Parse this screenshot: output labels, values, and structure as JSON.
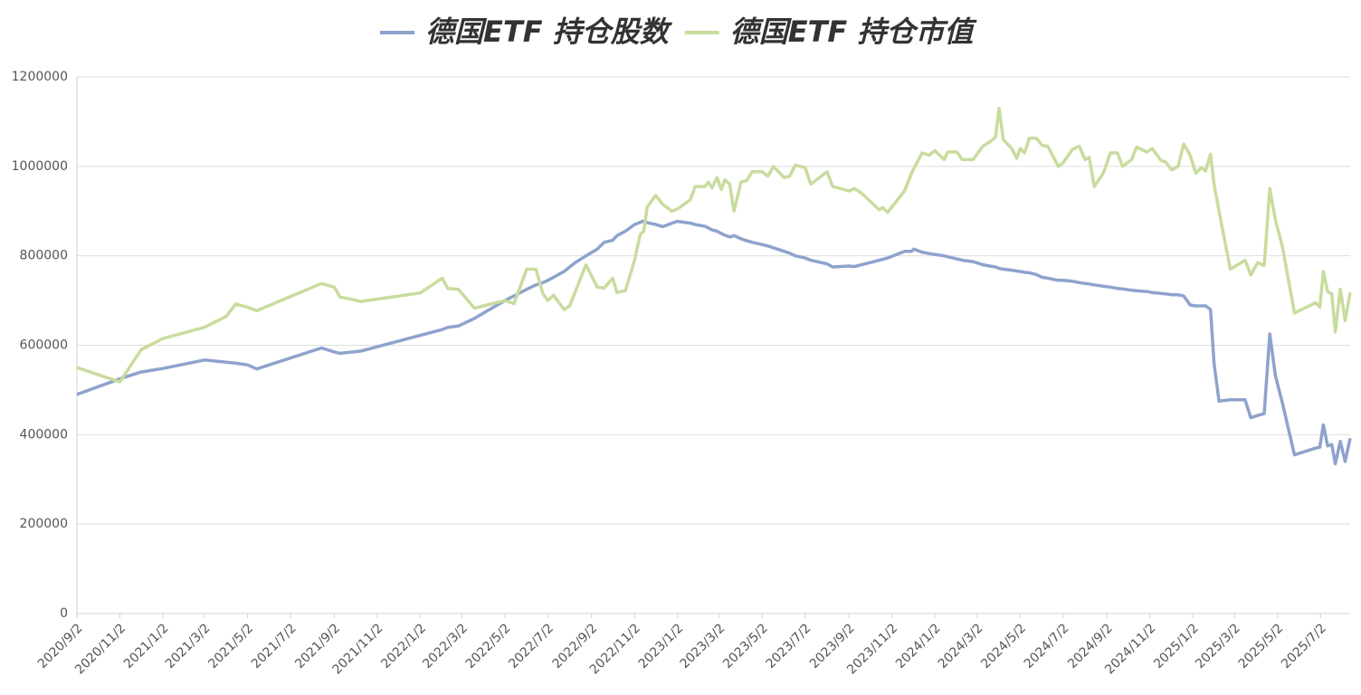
{
  "chart_data": {
    "type": "line",
    "x": [
      "2020/9/2",
      "2020/11/2",
      "2020/12/2",
      "2021/1/2",
      "2021/3/2",
      "2021/4/2",
      "2021/4/15",
      "2021/5/2",
      "2021/5/15",
      "2021/8/15",
      "2021/9/2",
      "2021/9/10",
      "2021/10/10",
      "2022/1/2",
      "2022/2/2",
      "2022/2/10",
      "2022/2/25",
      "2022/3/20",
      "2022/5/2",
      "2022/5/15",
      "2022/6/2",
      "2022/6/15",
      "2022/6/25",
      "2022/7/2",
      "2022/7/10",
      "2022/7/25",
      "2022/8/2",
      "2022/8/10",
      "2022/8/25",
      "2022/9/10",
      "2022/9/20",
      "2022/10/2",
      "2022/10/8",
      "2022/10/20",
      "2022/11/2",
      "2022/11/10",
      "2022/11/15",
      "2022/11/20",
      "2022/12/2",
      "2022/12/12",
      "2022/12/25",
      "2023/1/2",
      "2023/1/20",
      "2023/1/27",
      "2023/2/10",
      "2023/2/15",
      "2023/2/20",
      "2023/2/27",
      "2023/3/5",
      "2023/3/10",
      "2023/3/17",
      "2023/3/23",
      "2023/4/2",
      "2023/4/10",
      "2023/4/18",
      "2023/5/2",
      "2023/5/10",
      "2023/5/18",
      "2023/6/2",
      "2023/6/10",
      "2023/6/18",
      "2023/7/2",
      "2023/7/10",
      "2023/8/2",
      "2023/8/10",
      "2023/9/2",
      "2023/9/10",
      "2023/9/20",
      "2023/10/15",
      "2023/10/20",
      "2023/10/27",
      "2023/11/20",
      "2023/11/30",
      "2023/12/3",
      "2023/12/15",
      "2023/12/25",
      "2024/1/2",
      "2024/1/15",
      "2024/1/20",
      "2024/2/2",
      "2024/2/10",
      "2024/2/25",
      "2024/3/10",
      "2024/3/20",
      "2024/3/28",
      "2024/4/2",
      "2024/4/8",
      "2024/4/20",
      "2024/4/27",
      "2024/5/2",
      "2024/5/8",
      "2024/5/15",
      "2024/5/25",
      "2024/6/2",
      "2024/6/10",
      "2024/6/25",
      "2024/7/2",
      "2024/7/15",
      "2024/7/25",
      "2024/8/2",
      "2024/8/8",
      "2024/8/15",
      "2024/8/28",
      "2024/9/7",
      "2024/9/17",
      "2024/9/24",
      "2024/10/7",
      "2024/10/14",
      "2024/10/29",
      "2024/11/5",
      "2024/11/18",
      "2024/11/24",
      "2024/12/3",
      "2024/12/12",
      "2024/12/20",
      "2024/12/29",
      "2025/1/6",
      "2025/1/14",
      "2025/1/20",
      "2025/1/27",
      "2025/2/1",
      "2025/2/8",
      "2025/2/24",
      "2025/3/17",
      "2025/3/25",
      "2025/4/4",
      "2025/4/13",
      "2025/4/21",
      "2025/4/29",
      "2025/5/9",
      "2025/5/26",
      "2025/6/25",
      "2025/7/1",
      "2025/7/6",
      "2025/7/12",
      "2025/7/18",
      "2025/7/23",
      "2025/7/30",
      "2025/8/6",
      "2025/8/13"
    ],
    "series": [
      {
        "name": "德国ETF 持仓股数",
        "color": "#8ea2cd",
        "values": [
          490000,
          525000,
          540000,
          548000,
          567000,
          562000,
          560000,
          556000,
          547000,
          594000,
          585000,
          582000,
          587000,
          622000,
          635000,
          640000,
          643000,
          660000,
          700000,
          710000,
          725000,
          735000,
          740000,
          745000,
          752000,
          765000,
          775000,
          785000,
          800000,
          815000,
          830000,
          835000,
          845000,
          855000,
          870000,
          875000,
          878000,
          874000,
          870000,
          865000,
          873000,
          877000,
          873000,
          870000,
          866000,
          862000,
          858000,
          855000,
          850000,
          846000,
          842000,
          845000,
          838000,
          834000,
          830000,
          825000,
          822000,
          818000,
          810000,
          806000,
          800000,
          795000,
          790000,
          782000,
          775000,
          777000,
          776000,
          780000,
          790000,
          792000,
          795000,
          810000,
          810000,
          815000,
          808000,
          805000,
          803000,
          800000,
          798000,
          793000,
          790000,
          787000,
          780000,
          777000,
          775000,
          772000,
          770000,
          768000,
          766000,
          765000,
          763000,
          762000,
          758000,
          752000,
          750000,
          745000,
          745000,
          743000,
          740000,
          738000,
          737000,
          735000,
          732000,
          730000,
          727000,
          726000,
          723000,
          722000,
          720000,
          718000,
          716000,
          715000,
          713000,
          713000,
          710000,
          690000,
          688000,
          688000,
          688000,
          680000,
          560000,
          475000,
          478000,
          478000,
          438000,
          443000,
          447000,
          625000,
          532000,
          470000,
          355000,
          370000,
          372000,
          422000,
          375000,
          378000,
          335000,
          385000,
          340000,
          392000
        ]
      },
      {
        "name": "德国ETF 持仓市值",
        "color": "#c8dc9e",
        "values": [
          550000,
          518000,
          590000,
          615000,
          640000,
          665000,
          692000,
          685000,
          677000,
          738000,
          730000,
          708000,
          698000,
          717000,
          750000,
          727000,
          725000,
          683000,
          700000,
          693000,
          770000,
          770000,
          715000,
          700000,
          712000,
          680000,
          688000,
          720000,
          780000,
          730000,
          728000,
          750000,
          718000,
          722000,
          790000,
          848000,
          855000,
          910000,
          935000,
          915000,
          900000,
          905000,
          925000,
          955000,
          955000,
          965000,
          952000,
          975000,
          948000,
          970000,
          960000,
          900000,
          965000,
          968000,
          988000,
          988000,
          978000,
          1000000,
          975000,
          978000,
          1003000,
          997000,
          960000,
          988000,
          955000,
          945000,
          950000,
          940000,
          903000,
          908000,
          897000,
          945000,
          985000,
          995000,
          1030000,
          1025000,
          1035000,
          1015000,
          1032000,
          1032000,
          1015000,
          1015000,
          1045000,
          1055000,
          1065000,
          1130000,
          1060000,
          1040000,
          1018000,
          1040000,
          1030000,
          1063000,
          1063000,
          1047000,
          1045000,
          1000000,
          1008000,
          1038000,
          1045000,
          1015000,
          1020000,
          955000,
          985000,
          1030000,
          1030000,
          1000000,
          1015000,
          1043000,
          1032000,
          1040000,
          1013000,
          1010000,
          992000,
          1000000,
          1050000,
          1025000,
          985000,
          997000,
          990000,
          1027000,
          960000,
          900000,
          770000,
          790000,
          757000,
          785000,
          778000,
          950000,
          880000,
          820000,
          672000,
          695000,
          685000,
          765000,
          720000,
          715000,
          630000,
          725000,
          655000,
          718000
        ]
      }
    ],
    "xlim": [
      "2020/9/2",
      "2025/8/13"
    ],
    "xticks": [
      "2020/9/2",
      "2020/11/2",
      "2021/1/2",
      "2021/3/2",
      "2021/5/2",
      "2021/7/2",
      "2021/9/2",
      "2021/11/2",
      "2022/1/2",
      "2022/3/2",
      "2022/5/2",
      "2022/7/2",
      "2022/9/2",
      "2022/11/2",
      "2023/1/2",
      "2023/3/2",
      "2023/5/2",
      "2023/7/2",
      "2023/9/2",
      "2023/11/2",
      "2024/1/2",
      "2024/3/2",
      "2024/5/2",
      "2024/7/2",
      "2024/9/2",
      "2024/11/2",
      "2025/1/2",
      "2025/3/2",
      "2025/5/2",
      "2025/7/2"
    ],
    "ylim": [
      0,
      1200000
    ],
    "yticks": [
      0,
      200000,
      400000,
      600000,
      800000,
      1000000,
      1200000
    ],
    "grid": true
  }
}
